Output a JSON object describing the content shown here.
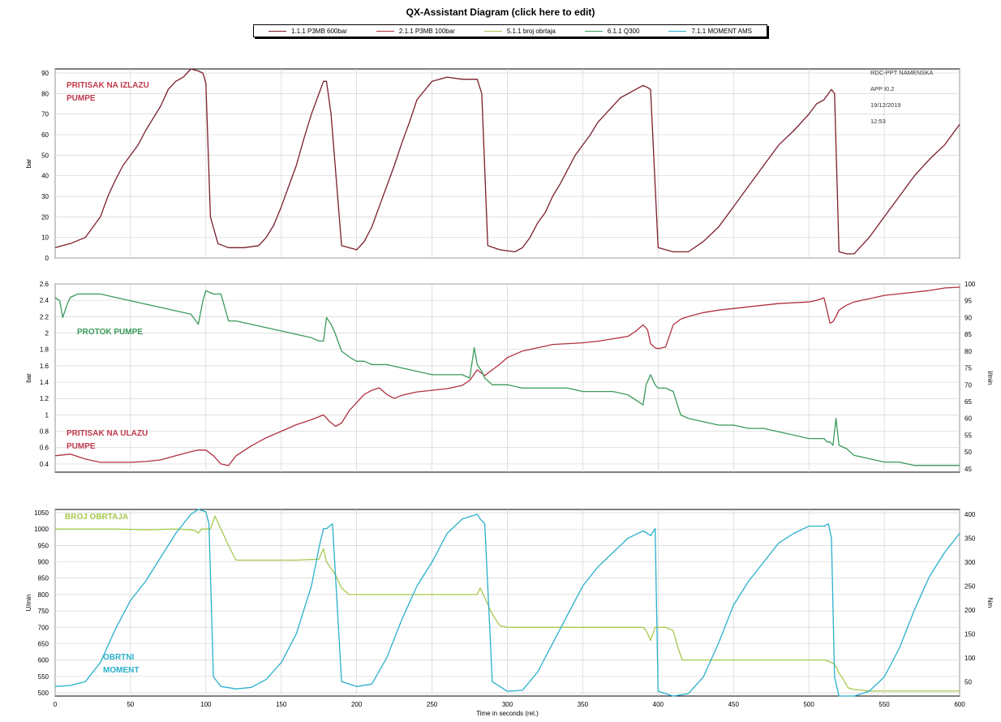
{
  "title": "QX-Assistant Diagram (click here to edit)",
  "legend": [
    {
      "label": "1.1.1 P3MB 600bar",
      "color": "#7a1e2a"
    },
    {
      "label": "2.1.1 P3MB 100bar",
      "color": "#b03040"
    },
    {
      "label": "5.1.1 broj obrtaja",
      "color": "#a6c94e"
    },
    {
      "label": "6.1.1 Q300",
      "color": "#3a9a5a"
    },
    {
      "label": "7.1.1 MOMENT AMS",
      "color": "#2ab0cc"
    }
  ],
  "corner_info": [
    "RDC-PPT NAMENSKA",
    "APP I0.2",
    "19/12/2019",
    "12:53"
  ],
  "chart_data": [
    {
      "type": "line",
      "xlabel": "Time in seconds (rel.)",
      "ylabel": "bar",
      "xlim": [
        0,
        600
      ],
      "ylim": [
        0,
        92
      ],
      "xticks": [
        0,
        50,
        100,
        150,
        200,
        250,
        300,
        350,
        400,
        450,
        500,
        550,
        600
      ],
      "yticks": [
        0,
        10,
        20,
        30,
        40,
        50,
        60,
        70,
        80,
        90
      ],
      "grid": true,
      "annotation": {
        "text": [
          "PRITISAK NA IZLAZU",
          "PUMPE"
        ],
        "color": "#c0394b"
      },
      "series": [
        {
          "name": "1.1.1 P3MB 600bar",
          "color": "#7a1e2a",
          "x": [
            0,
            10,
            20,
            25,
            30,
            35,
            40,
            45,
            50,
            55,
            60,
            65,
            70,
            75,
            80,
            85,
            90,
            95,
            98,
            100,
            103,
            108,
            115,
            125,
            135,
            140,
            145,
            150,
            155,
            160,
            165,
            170,
            175,
            178,
            180,
            183,
            190,
            200,
            205,
            210,
            215,
            220,
            225,
            230,
            235,
            240,
            250,
            260,
            270,
            280,
            283,
            287,
            295,
            305,
            310,
            315,
            320,
            325,
            330,
            335,
            340,
            345,
            350,
            355,
            360,
            365,
            370,
            375,
            380,
            385,
            390,
            393,
            395,
            400,
            410,
            420,
            430,
            440,
            450,
            460,
            470,
            480,
            490,
            500,
            505,
            510,
            513,
            515,
            517,
            520,
            525,
            530,
            540,
            550,
            560,
            570,
            580,
            590,
            595,
            600
          ],
          "y": [
            5,
            7,
            10,
            15,
            20,
            30,
            38,
            45,
            50,
            55,
            62,
            68,
            74,
            82,
            86,
            88,
            92,
            91,
            90,
            85,
            20,
            7,
            5,
            5,
            6,
            10,
            16,
            25,
            35,
            45,
            58,
            70,
            80,
            86,
            86,
            70,
            6,
            4,
            8,
            15,
            25,
            35,
            45,
            56,
            66,
            77,
            86,
            88,
            87,
            87,
            80,
            6,
            4,
            3,
            5,
            10,
            17,
            22,
            30,
            36,
            43,
            50,
            55,
            60,
            66,
            70,
            74,
            78,
            80,
            82,
            84,
            83,
            82,
            5,
            3,
            3,
            8,
            15,
            25,
            35,
            45,
            55,
            62,
            70,
            75,
            77,
            80,
            82,
            80,
            3,
            2,
            2,
            10,
            20,
            30,
            40,
            48,
            55,
            60,
            65
          ]
        }
      ]
    },
    {
      "type": "line",
      "xlabel": "Time in seconds (rel.)",
      "ylabel": "bar",
      "ylabel_right": "l/min",
      "xlim": [
        0,
        600
      ],
      "ylim": [
        0.3,
        2.6
      ],
      "ylim_right": [
        44,
        100
      ],
      "xticks": [
        0,
        50,
        100,
        150,
        200,
        250,
        300,
        350,
        400,
        450,
        500,
        550,
        600
      ],
      "yticks": [
        0.4,
        0.6,
        0.8,
        1,
        1.2,
        1.4,
        1.6,
        1.8,
        2,
        2.2,
        2.4,
        2.6
      ],
      "yticks_right": [
        45,
        50,
        55,
        60,
        65,
        70,
        75,
        80,
        85,
        90,
        95,
        100
      ],
      "grid": true,
      "annotations": [
        {
          "text": [
            "PROTOK PUMPE"
          ],
          "color": "#3a9a5a"
        },
        {
          "text": [
            "PRITISAK NA ULAZU",
            "PUMPE"
          ],
          "color": "#c0394b"
        }
      ],
      "series": [
        {
          "name": "2.1.1 P3MB 100bar",
          "axis": "left",
          "color": "#b03040",
          "x": [
            0,
            10,
            20,
            30,
            40,
            50,
            60,
            70,
            80,
            90,
            95,
            100,
            105,
            110,
            115,
            120,
            130,
            140,
            150,
            160,
            170,
            178,
            182,
            186,
            190,
            195,
            200,
            205,
            210,
            215,
            220,
            225,
            230,
            240,
            250,
            260,
            270,
            275,
            280,
            285,
            290,
            295,
            300,
            310,
            320,
            330,
            340,
            350,
            360,
            370,
            380,
            385,
            390,
            393,
            395,
            398,
            400,
            405,
            410,
            415,
            420,
            430,
            440,
            450,
            460,
            470,
            480,
            490,
            500,
            505,
            510,
            512,
            514,
            516,
            518,
            520,
            525,
            530,
            540,
            550,
            560,
            570,
            580,
            590,
            600
          ],
          "y": [
            0.5,
            0.52,
            0.46,
            0.42,
            0.42,
            0.42,
            0.43,
            0.45,
            0.5,
            0.55,
            0.57,
            0.57,
            0.5,
            0.4,
            0.38,
            0.5,
            0.62,
            0.72,
            0.8,
            0.88,
            0.94,
            1,
            0.92,
            0.86,
            0.9,
            1.05,
            1.15,
            1.25,
            1.3,
            1.33,
            1.25,
            1.2,
            1.24,
            1.28,
            1.3,
            1.32,
            1.36,
            1.42,
            1.55,
            1.48,
            1.55,
            1.62,
            1.7,
            1.78,
            1.82,
            1.86,
            1.87,
            1.88,
            1.9,
            1.93,
            1.96,
            2.02,
            2.1,
            2.04,
            1.87,
            1.82,
            1.81,
            1.83,
            2.1,
            2.17,
            2.2,
            2.25,
            2.28,
            2.3,
            2.32,
            2.34,
            2.36,
            2.37,
            2.38,
            2.4,
            2.43,
            2.28,
            2.12,
            2.14,
            2.2,
            2.28,
            2.34,
            2.38,
            2.42,
            2.46,
            2.48,
            2.5,
            2.52,
            2.55,
            2.56
          ]
        },
        {
          "name": "6.1.1 Q300",
          "axis": "right",
          "color": "#3a9a5a",
          "x": [
            0,
            3,
            5,
            8,
            10,
            15,
            20,
            30,
            40,
            50,
            60,
            70,
            80,
            90,
            95,
            98,
            100,
            105,
            110,
            115,
            120,
            130,
            140,
            150,
            160,
            170,
            175,
            178,
            180,
            183,
            186,
            190,
            193,
            196,
            200,
            205,
            210,
            220,
            230,
            240,
            250,
            260,
            270,
            275,
            278,
            280,
            283,
            285,
            290,
            295,
            300,
            310,
            320,
            330,
            340,
            350,
            360,
            370,
            380,
            390,
            392,
            395,
            398,
            400,
            405,
            410,
            415,
            420,
            430,
            440,
            450,
            460,
            470,
            480,
            490,
            500,
            510,
            512,
            514,
            516,
            518,
            520,
            525,
            530,
            540,
            550,
            560,
            570,
            580,
            590,
            600
          ],
          "y": [
            96,
            95,
            90,
            94,
            96,
            97,
            97,
            97,
            96,
            95,
            94,
            93,
            92,
            91,
            88,
            95,
            98,
            97,
            97,
            89,
            89,
            88,
            87,
            86,
            85,
            84,
            83,
            83,
            90,
            88,
            85,
            80,
            79,
            78,
            77,
            77,
            76,
            76,
            75,
            74,
            73,
            73,
            73,
            72,
            81,
            76,
            74,
            72,
            70,
            70,
            70,
            69,
            69,
            69,
            69,
            68,
            68,
            68,
            67,
            64,
            70,
            73,
            70,
            69,
            69,
            68,
            61,
            60,
            59,
            58,
            58,
            57,
            57,
            56,
            55,
            54,
            54,
            53,
            53,
            52,
            60,
            52,
            51,
            49,
            48,
            47,
            47,
            46,
            46,
            46,
            46
          ]
        }
      ]
    },
    {
      "type": "line",
      "xlabel": "Time in seconds (rel.)",
      "ylabel": "U/min",
      "ylabel_right": "Nm",
      "xlim": [
        0,
        600
      ],
      "ylim": [
        490,
        1060
      ],
      "ylim_right": [
        20,
        410
      ],
      "xticks": [
        0,
        50,
        100,
        150,
        200,
        250,
        300,
        350,
        400,
        450,
        500,
        550,
        600
      ],
      "yticks": [
        500,
        550,
        600,
        650,
        700,
        750,
        800,
        850,
        900,
        950,
        1000,
        1050
      ],
      "yticks_right": [
        50,
        100,
        150,
        200,
        250,
        300,
        350,
        400
      ],
      "grid": true,
      "annotations": [
        {
          "text": [
            "BROJ OBRTAJA"
          ],
          "color": "#a6c94e"
        },
        {
          "text": [
            "OBRTNI",
            "MOMENT"
          ],
          "color": "#2ab0cc"
        }
      ],
      "series": [
        {
          "name": "5.1.1 broj obrtaja",
          "axis": "left",
          "color": "#a6c94e",
          "x": [
            0,
            20,
            40,
            60,
            80,
            90,
            93,
            95,
            97,
            100,
            103,
            106,
            110,
            115,
            120,
            140,
            160,
            175,
            178,
            180,
            183,
            186,
            190,
            195,
            200,
            220,
            240,
            260,
            280,
            282,
            285,
            290,
            295,
            300,
            320,
            340,
            360,
            380,
            390,
            392,
            395,
            398,
            400,
            405,
            410,
            413,
            416,
            420,
            440,
            460,
            480,
            500,
            510,
            512,
            514,
            516,
            518,
            520,
            523,
            526,
            530,
            540,
            560,
            580,
            600
          ],
          "y": [
            1000,
            1000,
            1000,
            998,
            1000,
            998,
            995,
            988,
            1000,
            1000,
            1000,
            1040,
            1000,
            950,
            905,
            905,
            905,
            908,
            940,
            900,
            880,
            860,
            820,
            800,
            800,
            800,
            800,
            800,
            800,
            820,
            790,
            740,
            705,
            700,
            700,
            700,
            700,
            700,
            700,
            690,
            660,
            700,
            700,
            700,
            690,
            640,
            600,
            600,
            600,
            600,
            600,
            600,
            600,
            598,
            594,
            590,
            580,
            560,
            540,
            515,
            510,
            505,
            505,
            505,
            505
          ]
        },
        {
          "name": "7.1.1 MOMENT AMS",
          "axis": "right",
          "color": "#2ab0cc",
          "x": [
            0,
            10,
            20,
            30,
            40,
            50,
            60,
            70,
            80,
            90,
            95,
            100,
            102,
            105,
            110,
            120,
            130,
            140,
            150,
            160,
            165,
            170,
            175,
            178,
            180,
            184,
            190,
            200,
            210,
            220,
            230,
            240,
            250,
            260,
            270,
            280,
            282,
            285,
            290,
            300,
            310,
            320,
            330,
            340,
            350,
            360,
            370,
            380,
            390,
            393,
            395,
            398,
            400,
            410,
            420,
            430,
            440,
            450,
            460,
            470,
            480,
            490,
            500,
            510,
            513,
            515,
            517,
            520,
            530,
            540,
            550,
            560,
            570,
            580,
            590,
            595,
            600
          ],
          "y": [
            40,
            42,
            50,
            90,
            160,
            220,
            260,
            310,
            360,
            400,
            410,
            405,
            380,
            60,
            40,
            35,
            38,
            55,
            90,
            150,
            200,
            250,
            330,
            370,
            370,
            380,
            50,
            40,
            45,
            100,
            180,
            250,
            300,
            360,
            390,
            400,
            390,
            380,
            50,
            30,
            32,
            70,
            130,
            190,
            250,
            290,
            320,
            350,
            365,
            360,
            355,
            370,
            30,
            20,
            25,
            60,
            130,
            210,
            260,
            300,
            340,
            360,
            375,
            375,
            380,
            350,
            60,
            20,
            20,
            30,
            60,
            120,
            200,
            270,
            320,
            340,
            360
          ]
        }
      ]
    }
  ]
}
